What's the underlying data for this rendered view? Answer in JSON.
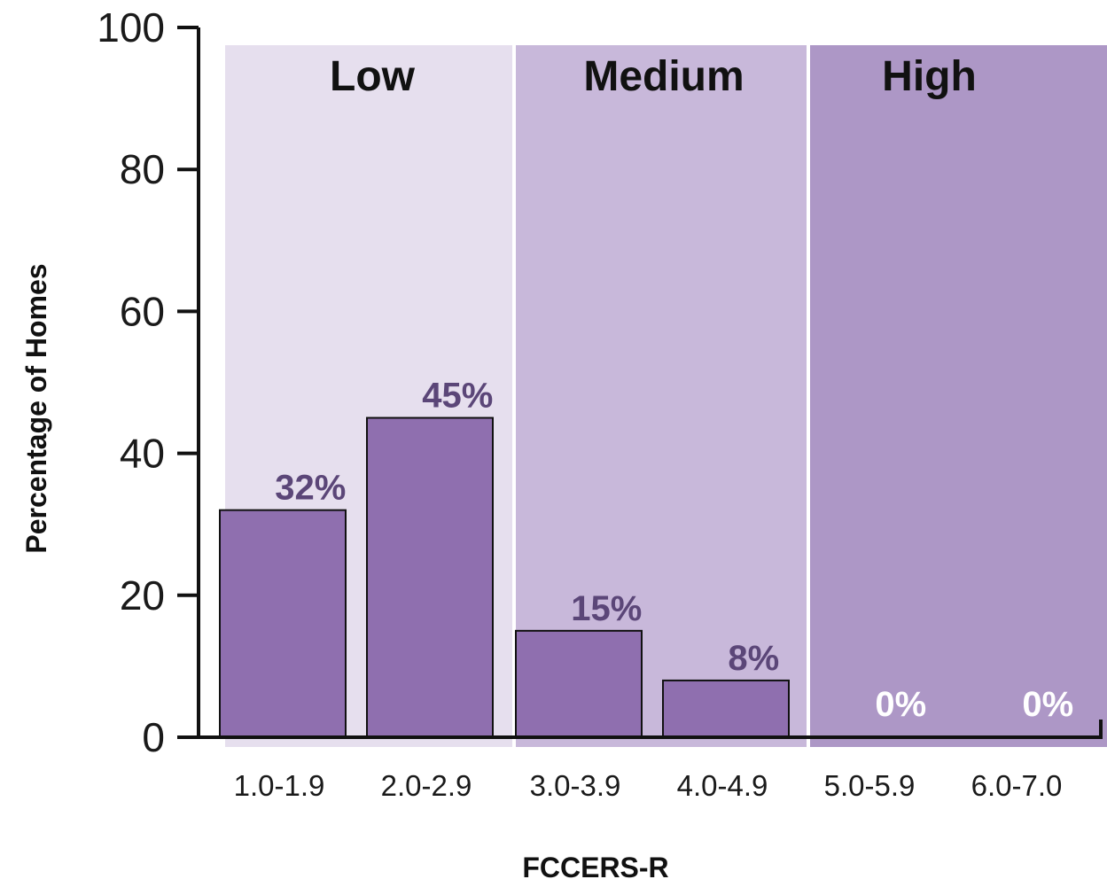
{
  "chart_data": {
    "type": "bar",
    "xlabel": "FCCERS-R",
    "ylabel": "Percentage of Homes",
    "ylim": [
      0,
      100
    ],
    "yticks": [
      "0",
      "20",
      "40",
      "60",
      "80",
      "100"
    ],
    "categories": [
      "1.0-1.9",
      "2.0-2.9",
      "3.0-3.9",
      "4.0-4.9",
      "5.0-5.9",
      "6.0-7.0"
    ],
    "values": [
      32,
      45,
      15,
      8,
      0,
      0
    ],
    "data_labels": [
      "32%",
      "45%",
      "15%",
      "8%",
      "0%",
      "0%"
    ],
    "bands": [
      {
        "label": "Low",
        "from_category": 0,
        "to_category": 1,
        "color": "#e6dfee"
      },
      {
        "label": "Medium",
        "from_category": 2,
        "to_category": 3,
        "color": "#c8b8da"
      },
      {
        "label": "High",
        "from_category": 4,
        "to_category": 5,
        "color": "#ad97c6"
      }
    ],
    "bar_color": "#8f6faf",
    "data_label_color": "#5b4678",
    "grid": false
  }
}
